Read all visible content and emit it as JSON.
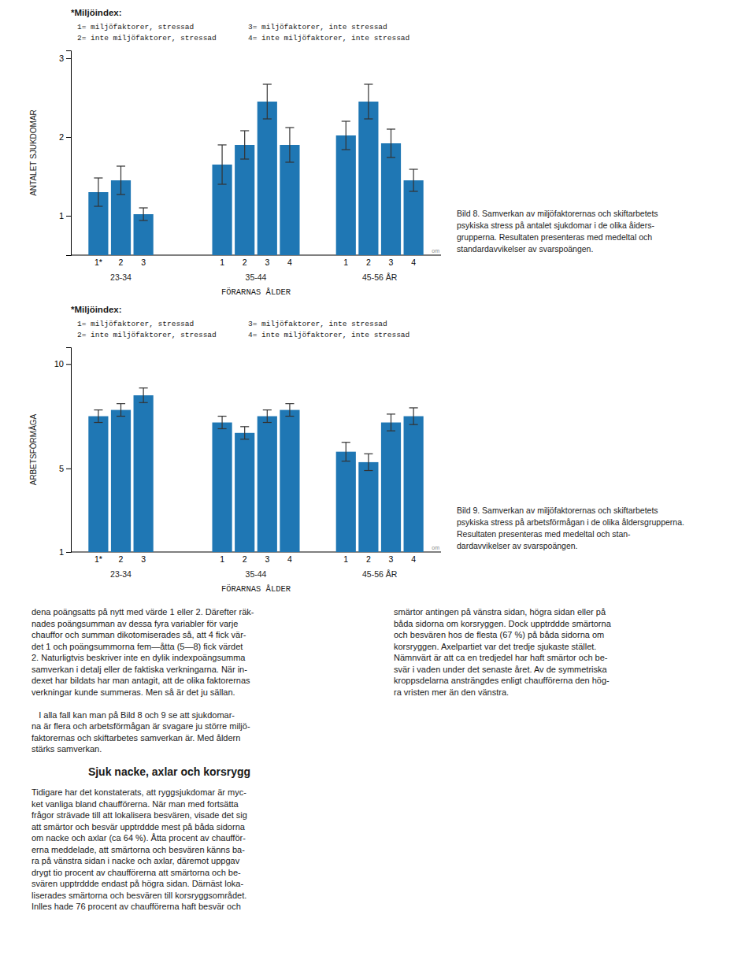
{
  "chart_data": [
    {
      "type": "bar",
      "ylabel": "ANTALET SJUKDOMAR",
      "xlabel": "FÖRARNAS ÅLDER",
      "ylim": [
        0.5,
        3.1
      ],
      "yticks": [
        1,
        2,
        3
      ],
      "series": [
        {
          "name": "23-34",
          "categories": [
            "1*",
            "2",
            "3"
          ],
          "values": [
            1.3,
            1.45,
            1.02
          ],
          "errors": [
            0.18,
            0.18,
            0.08
          ]
        },
        {
          "name": "35-44",
          "categories": [
            "1",
            "2",
            "3",
            "4"
          ],
          "values": [
            1.65,
            1.9,
            2.45,
            1.9
          ],
          "errors": [
            0.25,
            0.18,
            0.22,
            0.22
          ]
        },
        {
          "name": "45-56 ÅR",
          "categories": [
            "1",
            "2",
            "3",
            "4"
          ],
          "values": [
            2.02,
            2.45,
            1.92,
            1.45
          ],
          "errors": [
            0.18,
            0.22,
            0.18,
            0.14
          ]
        }
      ],
      "key": {
        "title": "*Miljöindex:",
        "items": [
          "1= miljöfaktorer, stressad",
          "2= inte miljöfaktorer, stressad",
          "3= miljöfaktorer, inte stressad",
          "4= inte miljöfaktorer, inte stressad"
        ]
      },
      "annotations": [
        "om"
      ],
      "caption": "Bild 8. Samverkan av miljöfaktorernas och skiftarbetets\npsykiska stress på antalet sjukdomar i de olika åiders-\ngrupperna. Resultaten presenteras med medeltal och\nstandardavvikelser av svarspoängen."
    },
    {
      "type": "bar",
      "ylabel": "ARBETSFÖRMÅGA",
      "xlabel": "FÖRARNAS ÅLDER",
      "ylim": [
        1,
        10.8
      ],
      "yticks": [
        1,
        5,
        10
      ],
      "series": [
        {
          "name": "23-34",
          "categories": [
            "1*",
            "2",
            "3"
          ],
          "values": [
            7.5,
            7.8,
            8.5
          ],
          "errors": [
            0.3,
            0.3,
            0.35
          ]
        },
        {
          "name": "35-44",
          "categories": [
            "1",
            "2",
            "3",
            "4"
          ],
          "values": [
            7.2,
            6.7,
            7.5,
            7.8
          ],
          "errors": [
            0.3,
            0.3,
            0.3,
            0.3
          ]
        },
        {
          "name": "45-56 ÅR",
          "categories": [
            "1",
            "2",
            "3",
            "4"
          ],
          "values": [
            5.8,
            5.3,
            7.2,
            7.5
          ],
          "errors": [
            0.45,
            0.4,
            0.4,
            0.4
          ]
        }
      ],
      "key": {
        "title": "*Miljöindex:",
        "items": [
          "1= miljöfaktorer, stressad",
          "2= inte miljöfaktorer, stressad",
          "3= miljöfaktorer, inte stressad",
          "4= inte miljöfaktorer, inte stressad"
        ]
      },
      "annotations": [
        "om"
      ],
      "caption": "Bild 9. Samverkan av miljöfaktorernas och skiftarbetets\npsykiska stress på arbetsförmågan i de olika åldersgrupperna.\nResultaten presenteras med medeltal och stan-\ndardavvikelser av svarspoängen."
    }
  ],
  "section_heading": "Sjuk nacke, axlar och korsrygg",
  "body_text": [
    "dena poängsatts på nytt med värde 1 eller 2. Därefter räk-\nnades poängsumman av dessa fyra variabler för varje\nchauffor och summan dikotomiserades så, att 4 fick vär-\ndet 1 och poängsummorna fem—åtta (5—8) fick värdet\n2. Naturligtvis beskriver inte en dylik indexpoängsumma\nsamverkan i detalj eller de faktiska verkningarna. När in-\ndexet har bildats har man antagit, att de olika faktorernas\nverkningar kunde summeras. Men så är det ju sällan.\n\n   I alla fall kan man på Bild 8 och 9 se att sjukdomar-\nna är flera och arbetsförmågan är svagare ju större miljö-\nfaktorernas och skiftarbetes samverkan är. Med åldern\nstärks samverkan.",
    "Tidigare har det konstaterats, att ryggsjukdomar är myc-\nket vanliga bland chaufförerna. När man med fortsätta\nfrågor strävade till att lokalisera besvären, visade det sig\natt smärtor och besvär upptrddde mest på båda sidorna\nom nacke och axlar (ca 64 %). Åtta procent av chaufför-\nerna meddelade, att smärtorna och besvären känns ba-\nra på vänstra sidan i nacke och axlar, däremot uppgav\ndrygt tio procent av chaufförerna att smärtorna och be-\nsvären upptrddde endast på högra sidan. Därnäst loka-\nliserades smärtorna och besvären till korsryggsområdet.\nInlles hade 76 procent av chaufförerna haft besvär och",
    "smärtor antingen på vänstra sidan, högra sidan eller på\nbåda sidorna om korsryggen. Dock upptrddde smärtorna\noch besvären hos de flesta (67 %) på båda sidorna om\nkorsryggen. Axelpartiet var det tredje sjukaste stället.\nNämnvärt är att ca en tredjedel har haft smärtor och be-\nsvär i vaden under det senaste året. Av de symmetriska\nkroppsdelarna ansträngdes enligt chaufförerna den hög-\nra vristen mer än den vänstra."
  ]
}
